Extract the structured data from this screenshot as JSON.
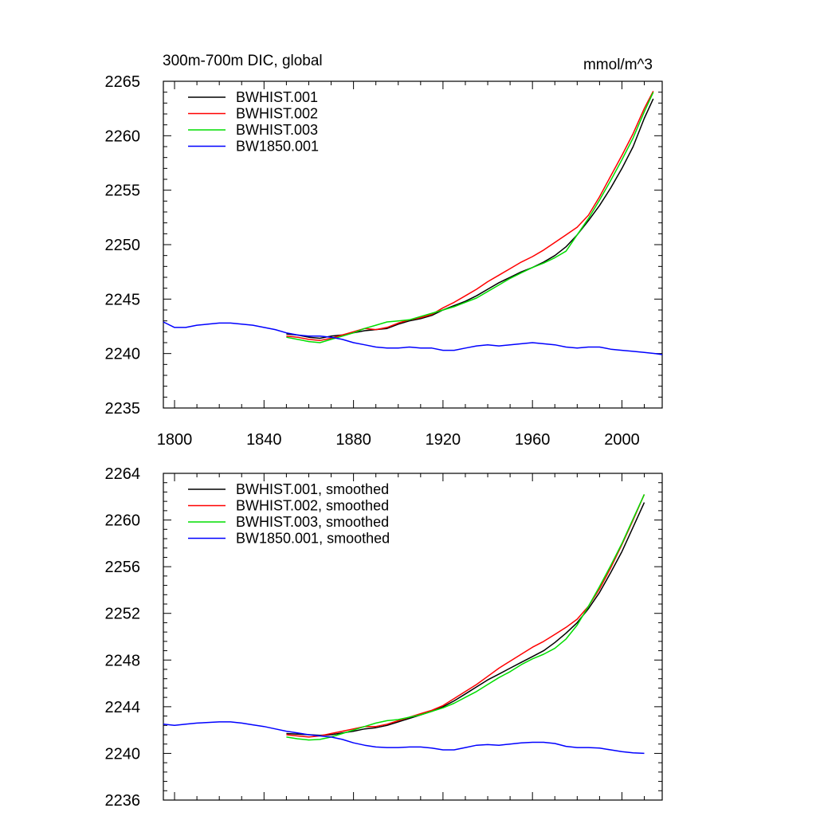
{
  "chart_data": [
    {
      "type": "line",
      "title": "300m-700m DIC, global",
      "unit_label": "mmol/m^3",
      "xlim": [
        1795,
        2018
      ],
      "ylim": [
        2235,
        2265
      ],
      "xticks": [
        1800,
        1840,
        1880,
        1920,
        1960,
        2000
      ],
      "yticks": [
        2235,
        2240,
        2245,
        2250,
        2255,
        2260,
        2265
      ],
      "x_tick_labels_shown": true,
      "grid": false,
      "legend_position": "top-left",
      "series": [
        {
          "name": "BWHIST.001",
          "color": "#000000",
          "x": [
            1850,
            1855,
            1860,
            1865,
            1870,
            1875,
            1880,
            1885,
            1890,
            1895,
            1900,
            1905,
            1910,
            1915,
            1920,
            1925,
            1930,
            1935,
            1940,
            1945,
            1950,
            1955,
            1960,
            1965,
            1970,
            1975,
            1980,
            1985,
            1990,
            1995,
            2000,
            2005,
            2010,
            2014
          ],
          "y": [
            2241.8,
            2241.7,
            2241.5,
            2241.4,
            2241.6,
            2241.7,
            2241.9,
            2242.1,
            2242.2,
            2242.3,
            2242.7,
            2243.0,
            2243.2,
            2243.5,
            2244.0,
            2244.4,
            2244.8,
            2245.3,
            2245.9,
            2246.5,
            2247.0,
            2247.5,
            2247.9,
            2248.4,
            2249.0,
            2249.8,
            2250.9,
            2252.2,
            2253.6,
            2255.2,
            2257.0,
            2259.0,
            2261.6,
            2263.4
          ]
        },
        {
          "name": "BWHIST.002",
          "color": "#ff0000",
          "x": [
            1850,
            1855,
            1860,
            1865,
            1870,
            1875,
            1880,
            1885,
            1890,
            1895,
            1900,
            1905,
            1910,
            1915,
            1920,
            1925,
            1930,
            1935,
            1940,
            1945,
            1950,
            1955,
            1960,
            1965,
            1970,
            1975,
            1980,
            1985,
            1990,
            1995,
            2000,
            2005,
            2010,
            2014
          ],
          "y": [
            2241.6,
            2241.5,
            2241.3,
            2241.2,
            2241.4,
            2241.7,
            2242.0,
            2242.3,
            2242.2,
            2242.4,
            2242.8,
            2243.1,
            2243.3,
            2243.6,
            2244.2,
            2244.7,
            2245.3,
            2245.9,
            2246.6,
            2247.2,
            2247.8,
            2248.4,
            2248.9,
            2249.5,
            2250.2,
            2250.9,
            2251.6,
            2252.7,
            2254.4,
            2256.3,
            2258.2,
            2260.2,
            2262.5,
            2264.1
          ]
        },
        {
          "name": "BWHIST.003",
          "color": "#00dd00",
          "x": [
            1850,
            1855,
            1860,
            1865,
            1870,
            1875,
            1880,
            1885,
            1890,
            1895,
            1900,
            1905,
            1910,
            1915,
            1920,
            1925,
            1930,
            1935,
            1940,
            1945,
            1950,
            1955,
            1960,
            1965,
            1970,
            1975,
            1980,
            1985,
            1990,
            1995,
            2000,
            2005,
            2010,
            2014
          ],
          "y": [
            2241.5,
            2241.3,
            2241.1,
            2241.0,
            2241.3,
            2241.6,
            2241.9,
            2242.3,
            2242.6,
            2242.9,
            2243.0,
            2243.1,
            2243.4,
            2243.7,
            2244.0,
            2244.3,
            2244.7,
            2245.1,
            2245.7,
            2246.3,
            2246.9,
            2247.4,
            2247.9,
            2248.3,
            2248.8,
            2249.4,
            2250.9,
            2252.4,
            2254.1,
            2255.9,
            2257.8,
            2259.8,
            2262.2,
            2264.0
          ]
        },
        {
          "name": "BW1850.001",
          "color": "#0000ff",
          "x": [
            1795,
            1800,
            1805,
            1810,
            1815,
            1820,
            1825,
            1830,
            1835,
            1840,
            1845,
            1850,
            1855,
            1860,
            1865,
            1870,
            1875,
            1880,
            1885,
            1890,
            1895,
            1900,
            1905,
            1910,
            1915,
            1920,
            1925,
            1930,
            1935,
            1940,
            1945,
            1950,
            1955,
            1960,
            1965,
            1970,
            1975,
            1980,
            1985,
            1990,
            1995,
            2000,
            2005,
            2010,
            2015,
            2018
          ],
          "y": [
            2242.9,
            2242.4,
            2242.4,
            2242.6,
            2242.7,
            2242.8,
            2242.8,
            2242.7,
            2242.6,
            2242.4,
            2242.2,
            2241.9,
            2241.7,
            2241.6,
            2241.6,
            2241.5,
            2241.3,
            2241.0,
            2240.8,
            2240.6,
            2240.5,
            2240.5,
            2240.6,
            2240.5,
            2240.5,
            2240.3,
            2240.3,
            2240.5,
            2240.7,
            2240.8,
            2240.7,
            2240.8,
            2240.9,
            2241.0,
            2240.9,
            2240.8,
            2240.6,
            2240.5,
            2240.6,
            2240.6,
            2240.4,
            2240.3,
            2240.2,
            2240.1,
            2240.0,
            2239.9
          ]
        }
      ]
    },
    {
      "type": "line",
      "title": "",
      "xlim": [
        1795,
        2018
      ],
      "ylim": [
        2236,
        2264
      ],
      "xticks": [
        1800,
        1840,
        1880,
        1920,
        1960,
        2000
      ],
      "yticks": [
        2236,
        2240,
        2244,
        2248,
        2252,
        2256,
        2260,
        2264
      ],
      "x_tick_labels_shown": false,
      "grid": false,
      "legend_position": "top-left",
      "series": [
        {
          "name": "BWHIST.001, smoothed",
          "color": "#000000",
          "x": [
            1850,
            1855,
            1860,
            1865,
            1870,
            1875,
            1880,
            1885,
            1890,
            1895,
            1900,
            1905,
            1910,
            1915,
            1920,
            1925,
            1930,
            1935,
            1940,
            1945,
            1950,
            1955,
            1960,
            1965,
            1970,
            1975,
            1980,
            1985,
            1990,
            1995,
            2000,
            2005,
            2010
          ],
          "y": [
            2241.7,
            2241.65,
            2241.6,
            2241.55,
            2241.6,
            2241.75,
            2241.9,
            2242.1,
            2242.2,
            2242.4,
            2242.7,
            2243.0,
            2243.3,
            2243.6,
            2244.0,
            2244.5,
            2245.1,
            2245.7,
            2246.3,
            2246.8,
            2247.3,
            2247.8,
            2248.3,
            2248.8,
            2249.5,
            2250.3,
            2251.2,
            2252.4,
            2253.8,
            2255.5,
            2257.3,
            2259.4,
            2261.5
          ]
        },
        {
          "name": "BWHIST.002, smoothed",
          "color": "#ff0000",
          "x": [
            1850,
            1855,
            1860,
            1865,
            1870,
            1875,
            1880,
            1885,
            1890,
            1895,
            1900,
            1905,
            1910,
            1915,
            1920,
            1925,
            1930,
            1935,
            1940,
            1945,
            1950,
            1955,
            1960,
            1965,
            1970,
            1975,
            1980,
            1985,
            1990,
            1995,
            2000,
            2005,
            2010
          ],
          "y": [
            2241.6,
            2241.5,
            2241.4,
            2241.5,
            2241.7,
            2241.9,
            2242.1,
            2242.3,
            2242.3,
            2242.5,
            2242.8,
            2243.1,
            2243.4,
            2243.7,
            2244.1,
            2244.7,
            2245.3,
            2245.9,
            2246.6,
            2247.3,
            2247.9,
            2248.5,
            2249.1,
            2249.6,
            2250.2,
            2250.8,
            2251.5,
            2252.6,
            2254.1,
            2255.9,
            2257.9,
            2260.0,
            2262.2
          ]
        },
        {
          "name": "BWHIST.003, smoothed",
          "color": "#00dd00",
          "x": [
            1850,
            1855,
            1860,
            1865,
            1870,
            1875,
            1880,
            1885,
            1890,
            1895,
            1900,
            1905,
            1910,
            1915,
            1920,
            1925,
            1930,
            1935,
            1940,
            1945,
            1950,
            1955,
            1960,
            1965,
            1970,
            1975,
            1980,
            1985,
            1990,
            1995,
            2000,
            2005,
            2010
          ],
          "y": [
            2241.4,
            2241.25,
            2241.15,
            2241.2,
            2241.4,
            2241.7,
            2242.0,
            2242.3,
            2242.6,
            2242.8,
            2242.9,
            2243.1,
            2243.3,
            2243.6,
            2243.9,
            2244.3,
            2244.8,
            2245.3,
            2245.9,
            2246.5,
            2247.0,
            2247.6,
            2248.1,
            2248.5,
            2249.0,
            2249.8,
            2251.0,
            2252.6,
            2254.3,
            2256.1,
            2258.0,
            2260.1,
            2262.2
          ]
        },
        {
          "name": "BW1850.001, smoothed",
          "color": "#0000ff",
          "x": [
            1795,
            1800,
            1805,
            1810,
            1815,
            1820,
            1825,
            1830,
            1835,
            1840,
            1845,
            1850,
            1855,
            1860,
            1865,
            1870,
            1875,
            1880,
            1885,
            1890,
            1895,
            1900,
            1905,
            1910,
            1915,
            1920,
            1925,
            1930,
            1935,
            1940,
            1945,
            1950,
            1955,
            1960,
            1965,
            1970,
            1975,
            1980,
            1985,
            1990,
            1995,
            2000,
            2005,
            2010
          ],
          "y": [
            2242.5,
            2242.4,
            2242.5,
            2242.6,
            2242.65,
            2242.7,
            2242.7,
            2242.6,
            2242.45,
            2242.3,
            2242.1,
            2241.9,
            2241.75,
            2241.6,
            2241.5,
            2241.4,
            2241.2,
            2240.9,
            2240.7,
            2240.55,
            2240.5,
            2240.5,
            2240.55,
            2240.55,
            2240.45,
            2240.3,
            2240.3,
            2240.5,
            2240.7,
            2240.75,
            2240.7,
            2240.8,
            2240.9,
            2240.95,
            2240.95,
            2240.85,
            2240.6,
            2240.5,
            2240.5,
            2240.45,
            2240.3,
            2240.15,
            2240.05,
            2240.0
          ]
        }
      ]
    }
  ]
}
